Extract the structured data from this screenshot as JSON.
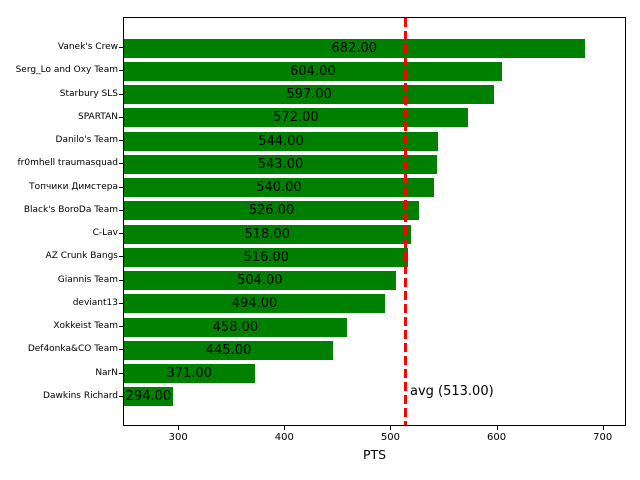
{
  "chart_data": {
    "type": "bar",
    "orientation": "horizontal",
    "title": "",
    "xlabel": "PTS",
    "ylabel": "",
    "categories": [
      "Vanek's Crew",
      "Serg_Lo and Oxy Team",
      "Starbury SLS",
      "SPARTAN",
      "Danilo's Team",
      "fr0mhell traumasquad",
      "Топчики Димстера",
      "Black's BoroDa Team",
      "C-Lav",
      "AZ Crunk Bangs",
      "Giannis Team",
      "deviant13",
      "Xokkeist Team",
      "Def4onka&CO Team",
      "NarN",
      "Dawkins Richard"
    ],
    "values": [
      682,
      604,
      597,
      572,
      544,
      543,
      540,
      526,
      518,
      516,
      504,
      494,
      458,
      445,
      371,
      294
    ],
    "value_labels": [
      "682.00",
      "604.00",
      "597.00",
      "572.00",
      "544.00",
      "543.00",
      "540.00",
      "526.00",
      "518.00",
      "516.00",
      "504.00",
      "494.00",
      "458.00",
      "445.00",
      "371.00",
      "294.00"
    ],
    "xlim": [
      248,
      722
    ],
    "xticks": [
      300,
      400,
      500,
      600,
      700
    ],
    "xtick_labels": [
      "300",
      "400",
      "500",
      "600",
      "700"
    ],
    "bar_color": "#008000",
    "value_label_color": "#000000",
    "grid": false,
    "legend": null,
    "avg_line": {
      "value": 513,
      "label": "avg (513.00)",
      "color": "#ff0000",
      "style": "dashed"
    }
  }
}
